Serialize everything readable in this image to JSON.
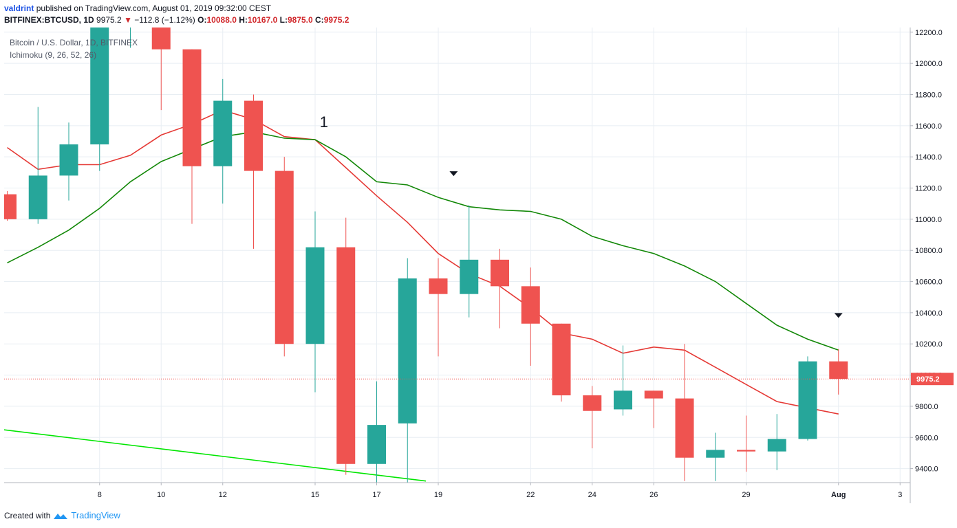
{
  "header": {
    "author": "valdrint",
    "published_text": "published on TradingView.com, August 01, 2019 09:32:00 CEST",
    "symbol": "BITFINEX:BTCUSD, 1D",
    "last": "9975.2",
    "change": "−112.8 (−1.12%)",
    "o_label": "O:",
    "o_value": "10088.0",
    "h_label": "H:",
    "h_value": "10167.0",
    "l_label": "L:",
    "l_value": "9875.0",
    "c_label": "C:",
    "c_value": "9975.2"
  },
  "footer": {
    "created_with": "Created with",
    "brand": "TradingView"
  },
  "chart_data": {
    "type": "candlestick",
    "title": "Bitcoin / U.S. Dollar, 1D, BITFINEX",
    "indicator": "Ichimoku (9, 26, 52, 26)",
    "annotation": "1",
    "last_price_label": "9975.2",
    "y_ticks": [
      9400,
      9600,
      9800,
      10000,
      10200,
      10400,
      10600,
      10800,
      11000,
      11200,
      11400,
      11600,
      11800,
      12000,
      12200
    ],
    "y_tick_labels": [
      "9400.0",
      "9600.0",
      "9800.0",
      "10000.0",
      "10200.0",
      "10400.0",
      "10600.0",
      "10800.0",
      "11000.0",
      "11200.0",
      "11400.0",
      "11600.0",
      "11800.0",
      "12000.0",
      "12200.0"
    ],
    "ylim": [
      9310,
      12230
    ],
    "x_ticks": [
      {
        "i": 3,
        "label": "8"
      },
      {
        "i": 5,
        "label": "10"
      },
      {
        "i": 7,
        "label": "12"
      },
      {
        "i": 10,
        "label": "15"
      },
      {
        "i": 12,
        "label": "17"
      },
      {
        "i": 14,
        "label": "19"
      },
      {
        "i": 17,
        "label": "22"
      },
      {
        "i": 19,
        "label": "24"
      },
      {
        "i": 21,
        "label": "26"
      },
      {
        "i": 24,
        "label": "29"
      },
      {
        "i": 27,
        "label": "Aug"
      },
      {
        "i": 29,
        "label": "3"
      }
    ],
    "candles": [
      {
        "date": "2019-07-05",
        "o": 11160,
        "h": 11180,
        "l": 10990,
        "c": 11000
      },
      {
        "date": "2019-07-06",
        "o": 11000,
        "h": 11720,
        "l": 10970,
        "c": 11280
      },
      {
        "date": "2019-07-07",
        "o": 11280,
        "h": 11620,
        "l": 11120,
        "c": 11480
      },
      {
        "date": "2019-07-08",
        "o": 11480,
        "h": 12400,
        "l": 11310,
        "c": 12300
      },
      {
        "date": "2019-07-09",
        "o": 12300,
        "h": 12900,
        "l": 12100,
        "c": 12500
      },
      {
        "date": "2019-07-10",
        "o": 12500,
        "h": 13100,
        "l": 11700,
        "c": 12090
      },
      {
        "date": "2019-07-11",
        "o": 12090,
        "h": 12090,
        "l": 10970,
        "c": 11340
      },
      {
        "date": "2019-07-12",
        "o": 11340,
        "h": 11900,
        "l": 11100,
        "c": 11760
      },
      {
        "date": "2019-07-13",
        "o": 11760,
        "h": 11800,
        "l": 10810,
        "c": 11310
      },
      {
        "date": "2019-07-14",
        "o": 11310,
        "h": 11400,
        "l": 10120,
        "c": 10200
      },
      {
        "date": "2019-07-15",
        "o": 10200,
        "h": 11050,
        "l": 9890,
        "c": 10820
      },
      {
        "date": "2019-07-16",
        "o": 10820,
        "h": 11010,
        "l": 9360,
        "c": 9430
      },
      {
        "date": "2019-07-17",
        "o": 9430,
        "h": 9960,
        "l": 9310,
        "c": 9680
      },
      {
        "date": "2019-07-18",
        "o": 9690,
        "h": 10750,
        "l": 9300,
        "c": 10620
      },
      {
        "date": "2019-07-19",
        "o": 10620,
        "h": 10750,
        "l": 10120,
        "c": 10520
      },
      {
        "date": "2019-07-20",
        "o": 10520,
        "h": 11090,
        "l": 10370,
        "c": 10740
      },
      {
        "date": "2019-07-21",
        "o": 10740,
        "h": 10810,
        "l": 10300,
        "c": 10570
      },
      {
        "date": "2019-07-22",
        "o": 10570,
        "h": 10690,
        "l": 10060,
        "c": 10330
      },
      {
        "date": "2019-07-23",
        "o": 10330,
        "h": 10330,
        "l": 9830,
        "c": 9870
      },
      {
        "date": "2019-07-24",
        "o": 9870,
        "h": 9930,
        "l": 9530,
        "c": 9770
      },
      {
        "date": "2019-07-25",
        "o": 9780,
        "h": 10190,
        "l": 9740,
        "c": 9900
      },
      {
        "date": "2019-07-26",
        "o": 9900,
        "h": 9900,
        "l": 9660,
        "c": 9850
      },
      {
        "date": "2019-07-27",
        "o": 9850,
        "h": 10200,
        "l": 9320,
        "c": 9470
      },
      {
        "date": "2019-07-28",
        "o": 9470,
        "h": 9630,
        "l": 9320,
        "c": 9520
      },
      {
        "date": "2019-07-29",
        "o": 9520,
        "h": 9740,
        "l": 9380,
        "c": 9510
      },
      {
        "date": "2019-07-30",
        "o": 9510,
        "h": 9750,
        "l": 9390,
        "c": 9590
      },
      {
        "date": "2019-07-31",
        "o": 9590,
        "h": 10120,
        "l": 9580,
        "c": 10088
      },
      {
        "date": "2019-08-01",
        "o": 10088,
        "h": 10167,
        "l": 9875,
        "c": 9975.2
      }
    ],
    "series": [
      {
        "type": "line",
        "color": "#e53935",
        "points": [
          [
            0,
            11460
          ],
          [
            1,
            11320
          ],
          [
            2,
            11350
          ],
          [
            3,
            11350
          ],
          [
            4,
            11410
          ],
          [
            5,
            11540
          ],
          [
            6,
            11610
          ],
          [
            7,
            11700
          ],
          [
            8,
            11640
          ],
          [
            9,
            11530
          ],
          [
            10,
            11510
          ],
          [
            11,
            11330
          ],
          [
            12,
            11150
          ],
          [
            13,
            10980
          ],
          [
            14,
            10780
          ],
          [
            15,
            10650
          ],
          [
            16,
            10570
          ],
          [
            17,
            10430
          ],
          [
            18,
            10270
          ],
          [
            19,
            10230
          ],
          [
            20,
            10140
          ],
          [
            21,
            10180
          ],
          [
            22,
            10160
          ],
          [
            23,
            10050
          ],
          [
            24,
            9940
          ],
          [
            25,
            9830
          ],
          [
            26,
            9790
          ],
          [
            27,
            9750
          ]
        ]
      },
      {
        "type": "line",
        "color": "#138808",
        "points": [
          [
            0,
            10720
          ],
          [
            1,
            10820
          ],
          [
            2,
            10930
          ],
          [
            3,
            11070
          ],
          [
            4,
            11240
          ],
          [
            5,
            11370
          ],
          [
            6,
            11450
          ],
          [
            7,
            11530
          ],
          [
            8,
            11560
          ],
          [
            9,
            11520
          ],
          [
            10,
            11510
          ],
          [
            11,
            11400
          ],
          [
            12,
            11240
          ],
          [
            13,
            11220
          ],
          [
            14,
            11140
          ],
          [
            15,
            11080
          ],
          [
            16,
            11060
          ],
          [
            17,
            11050
          ],
          [
            18,
            11000
          ],
          [
            19,
            10890
          ],
          [
            20,
            10830
          ],
          [
            21,
            10780
          ],
          [
            22,
            10700
          ],
          [
            23,
            10600
          ],
          [
            24,
            10460
          ],
          [
            25,
            10320
          ],
          [
            26,
            10230
          ],
          [
            27,
            10160
          ]
        ]
      },
      {
        "type": "line",
        "color": "#00e600",
        "points": [
          [
            -0.15,
            9650
          ],
          [
            13.6,
            9320
          ]
        ]
      }
    ],
    "markers": [
      {
        "i": 14.5,
        "y": 11290,
        "shape": "triangle-down"
      },
      {
        "i": 27,
        "y": 10380,
        "shape": "triangle-down"
      }
    ],
    "annotation_pos": {
      "i": 10.15,
      "y": 11590
    },
    "colors": {
      "up": "#26a69a",
      "down": "#ef5350",
      "grid": "#e8eef3",
      "axis": "#b2b5be"
    }
  }
}
